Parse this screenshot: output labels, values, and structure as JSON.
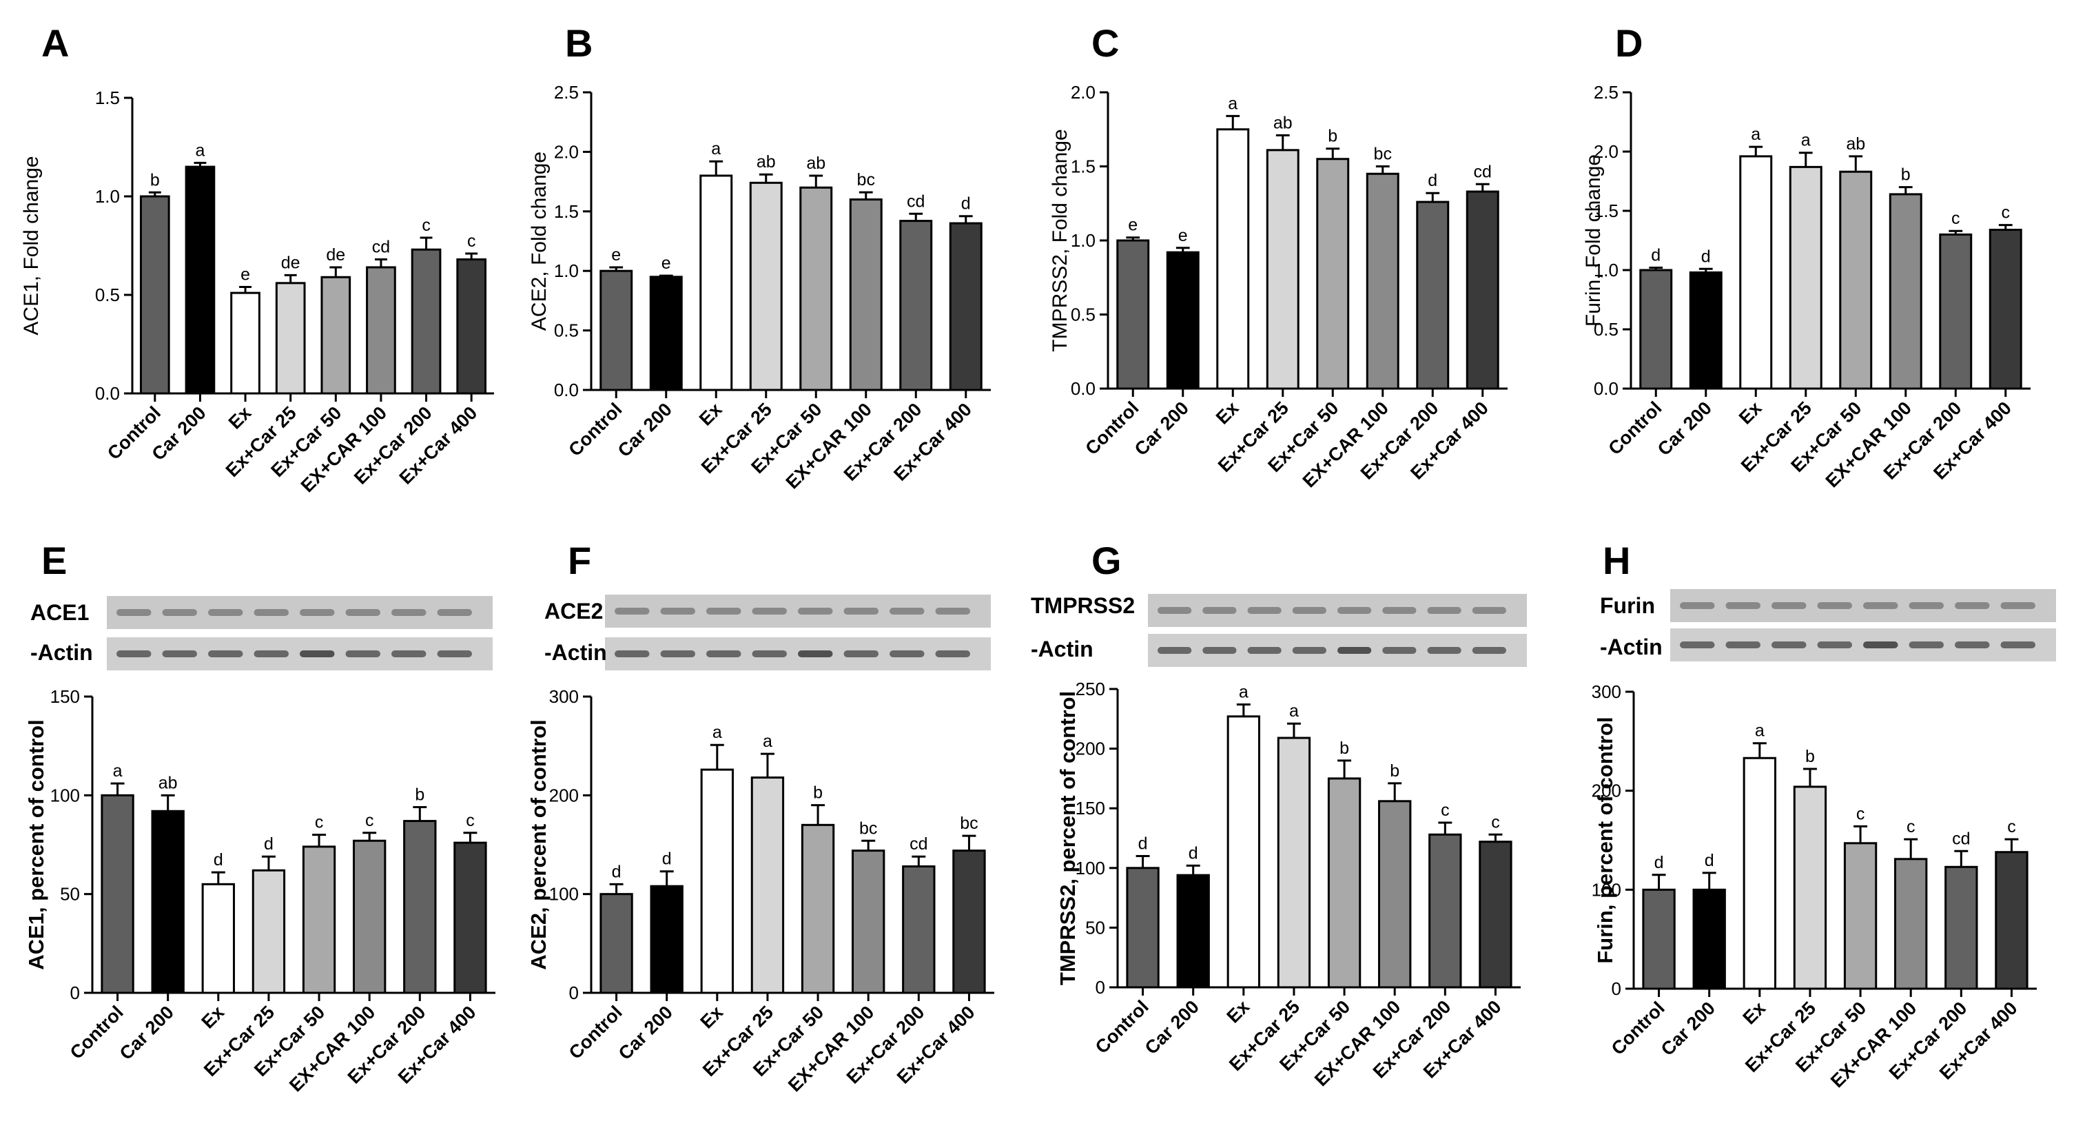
{
  "chart_data": [
    {
      "panel": "A",
      "type": "bar",
      "ylabel": "ACE1, Fold change",
      "ylim": [
        0,
        1.5
      ],
      "yticks": [
        "0.0",
        "0.5",
        "1.0",
        "1.5"
      ],
      "categories": [
        "Control",
        "Car 200",
        "Ex",
        "Ex+Car 25",
        "Ex+Car 50",
        "EX+CAR 100",
        "Ex+Car 200",
        "Ex+Car 400"
      ],
      "values": [
        1.0,
        1.15,
        0.51,
        0.56,
        0.59,
        0.64,
        0.73,
        0.68
      ],
      "errors": [
        0.02,
        0.02,
        0.03,
        0.04,
        0.05,
        0.04,
        0.06,
        0.03
      ],
      "letters": [
        "b",
        "a",
        "e",
        "de",
        "de",
        "cd",
        "c",
        "c"
      ]
    },
    {
      "panel": "B",
      "type": "bar",
      "ylabel": "ACE2, Fold change",
      "ylim": [
        0,
        2.5
      ],
      "yticks": [
        "0.0",
        "0.5",
        "1.0",
        "1.5",
        "2.0",
        "2.5"
      ],
      "categories": [
        "Control",
        "Car 200",
        "Ex",
        "Ex+Car 25",
        "Ex+Car 50",
        "EX+CAR 100",
        "Ex+Car 200",
        "Ex+Car 400"
      ],
      "values": [
        1.0,
        0.95,
        1.8,
        1.74,
        1.7,
        1.6,
        1.42,
        1.4
      ],
      "errors": [
        0.03,
        0.01,
        0.12,
        0.07,
        0.1,
        0.06,
        0.06,
        0.06
      ],
      "letters": [
        "e",
        "e",
        "a",
        "ab",
        "ab",
        "bc",
        "cd",
        "d"
      ]
    },
    {
      "panel": "C",
      "type": "bar",
      "ylabel": "TMPRSS2, Fold change",
      "ylim": [
        0,
        2.0
      ],
      "yticks": [
        "0.0",
        "0.5",
        "1.0",
        "1.5",
        "2.0"
      ],
      "categories": [
        "Control",
        "Car 200",
        "Ex",
        "Ex+Car 25",
        "Ex+Car 50",
        "EX+CAR 100",
        "Ex+Car 200",
        "Ex+Car 400"
      ],
      "values": [
        1.0,
        0.92,
        1.75,
        1.61,
        1.55,
        1.45,
        1.26,
        1.33
      ],
      "errors": [
        0.02,
        0.03,
        0.09,
        0.1,
        0.07,
        0.05,
        0.06,
        0.05
      ],
      "letters": [
        "e",
        "e",
        "a",
        "ab",
        "b",
        "bc",
        "d",
        "cd"
      ]
    },
    {
      "panel": "D",
      "type": "bar",
      "ylabel": "Furin, Fold change",
      "ylim": [
        0,
        2.5
      ],
      "yticks": [
        "0.0",
        "0.5",
        "1.0",
        "1.5",
        "2.0",
        "2.5"
      ],
      "categories": [
        "Control",
        "Car 200",
        "Ex",
        "Ex+Car 25",
        "Ex+Car 50",
        "EX+CAR 100",
        "Ex+Car 200",
        "Ex+Car 400"
      ],
      "values": [
        1.0,
        0.98,
        1.96,
        1.87,
        1.83,
        1.64,
        1.3,
        1.34
      ],
      "errors": [
        0.02,
        0.03,
        0.08,
        0.12,
        0.13,
        0.06,
        0.03,
        0.04
      ],
      "letters": [
        "d",
        "d",
        "a",
        "a",
        "ab",
        "b",
        "c",
        "c"
      ]
    },
    {
      "panel": "E",
      "type": "bar",
      "ylabel": "ACE1, percent of control",
      "ylim": [
        0,
        150
      ],
      "yticks": [
        "0",
        "50",
        "100",
        "150"
      ],
      "categories": [
        "Control",
        "Car 200",
        "Ex",
        "Ex+Car 25",
        "Ex+Car 50",
        "EX+CAR 100",
        "Ex+Car 200",
        "Ex+Car 400"
      ],
      "values": [
        100,
        92,
        55,
        62,
        74,
        77,
        87,
        76
      ],
      "errors": [
        6,
        8,
        6,
        7,
        6,
        4,
        7,
        5
      ],
      "letters": [
        "a",
        "ab",
        "d",
        "d",
        "c",
        "c",
        "b",
        "c"
      ],
      "blot_labels": [
        "ACE1",
        "-Actin"
      ]
    },
    {
      "panel": "F",
      "type": "bar",
      "ylabel": "ACE2, percent of control",
      "ylim": [
        0,
        300
      ],
      "yticks": [
        "0",
        "100",
        "200",
        "300"
      ],
      "categories": [
        "Control",
        "Car 200",
        "Ex",
        "Ex+Car 25",
        "Ex+Car 50",
        "EX+CAR 100",
        "Ex+Car 200",
        "Ex+Car 400"
      ],
      "values": [
        100,
        108,
        226,
        218,
        170,
        144,
        128,
        144
      ],
      "errors": [
        10,
        15,
        25,
        24,
        20,
        10,
        10,
        15
      ],
      "letters": [
        "d",
        "d",
        "a",
        "a",
        "b",
        "bc",
        "cd",
        "bc"
      ],
      "blot_labels": [
        "ACE2",
        "-Actin"
      ]
    },
    {
      "panel": "G",
      "type": "bar",
      "ylabel": "TMPRSS2, percent of control",
      "ylim": [
        0,
        250
      ],
      "yticks": [
        "0",
        "50",
        "100",
        "150",
        "200",
        "250"
      ],
      "categories": [
        "Control",
        "Car 200",
        "Ex",
        "Ex+Car 25",
        "Ex+Car 50",
        "EX+CAR 100",
        "Ex+Car 200",
        "Ex+Car 400"
      ],
      "values": [
        100,
        94,
        227,
        209,
        175,
        156,
        128,
        122
      ],
      "errors": [
        10,
        8,
        10,
        12,
        15,
        15,
        10,
        6
      ],
      "letters": [
        "d",
        "d",
        "a",
        "a",
        "b",
        "b",
        "c",
        "c"
      ],
      "blot_labels": [
        "TMPRSS2",
        "-Actin"
      ]
    },
    {
      "panel": "H",
      "type": "bar",
      "ylabel": "Furin, percent of control",
      "ylim": [
        0,
        300
      ],
      "yticks": [
        "0",
        "100",
        "200",
        "300"
      ],
      "categories": [
        "Control",
        "Car 200",
        "Ex",
        "Ex+Car 25",
        "Ex+Car 50",
        "EX+CAR 100",
        "Ex+Car 200",
        "Ex+Car 400"
      ],
      "values": [
        100,
        100,
        233,
        204,
        147,
        131,
        123,
        138
      ],
      "errors": [
        15,
        17,
        15,
        18,
        17,
        20,
        16,
        13
      ],
      "letters": [
        "d",
        "d",
        "a",
        "b",
        "c",
        "c",
        "cd",
        "c"
      ],
      "blot_labels": [
        "Furin",
        "-Actin"
      ]
    }
  ],
  "bar_colors": [
    "#5f5f5f",
    "#000000",
    "#ffffff",
    "#d6d6d6",
    "#a9a9a9",
    "#8a8a8a",
    "#626262",
    "#3a3a3a"
  ]
}
